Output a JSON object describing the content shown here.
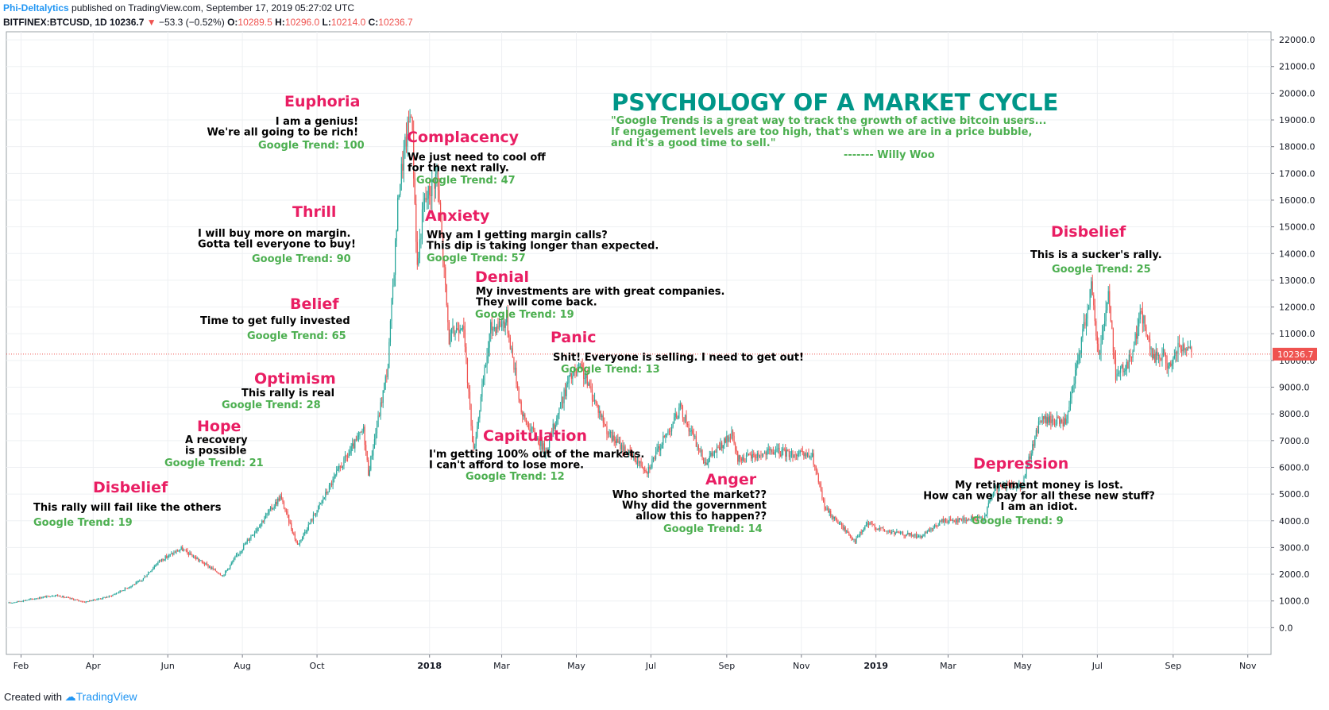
{
  "header": {
    "author": "Phi-Deltalytics",
    "published": "published on TradingView.com, September 17, 2019 05:27:02 UTC",
    "symbol": "BITFINEX:BTCUSD, 1D",
    "last": "10236.7",
    "change": "−53.3 (−0.52%)",
    "o_label": "O:",
    "o_val": "10289.5",
    "h_label": "H:",
    "h_val": "10296.0",
    "l_label": "L:",
    "l_val": "10214.0",
    "c_label": "C:",
    "c_val": "10236.7"
  },
  "footer": {
    "created_with": "Created with",
    "brand": "TradingView"
  },
  "colors": {
    "up": "#26a69a",
    "down": "#ef5350",
    "stage": "#e91e63",
    "trend": "#4caf50",
    "title": "#009688",
    "quote": "#4caf50",
    "last_price_line": "#ef5350"
  },
  "chart_data": {
    "type": "candlestick",
    "title": "PSYCHOLOGY OF A MARKET CYCLE",
    "quote": [
      "\"Google Trends is a great way to track the growth of active bitcoin users...",
      "If engagement levels are too high, that's when we are in a price bubble,",
      "and it's a good time to sell.\""
    ],
    "quote_author": "------- Willy Woo",
    "ylim": [
      -1000,
      22300
    ],
    "y_ticks": [
      "0.0",
      "1000.0",
      "2000.0",
      "3000.0",
      "4000.0",
      "5000.0",
      "6000.0",
      "7000.0",
      "8000.0",
      "9000.0",
      "10000.0",
      "11000.0",
      "12000.0",
      "13000.0",
      "14000.0",
      "15000.0",
      "16000.0",
      "17000.0",
      "18000.0",
      "19000.0",
      "20000.0",
      "21000.0",
      "22000.0"
    ],
    "x_ticks": [
      {
        "label": "Feb",
        "date": "2017-02-01",
        "bold": false
      },
      {
        "label": "Apr",
        "date": "2017-04-01",
        "bold": false
      },
      {
        "label": "Jun",
        "date": "2017-06-01",
        "bold": false
      },
      {
        "label": "Aug",
        "date": "2017-08-01",
        "bold": false
      },
      {
        "label": "Oct",
        "date": "2017-10-01",
        "bold": false
      },
      {
        "label": "2018",
        "date": "2018-01-01",
        "bold": true
      },
      {
        "label": "Mar",
        "date": "2018-03-01",
        "bold": false
      },
      {
        "label": "May",
        "date": "2018-05-01",
        "bold": false
      },
      {
        "label": "Jul",
        "date": "2018-07-01",
        "bold": false
      },
      {
        "label": "Sep",
        "date": "2018-09-01",
        "bold": false
      },
      {
        "label": "Nov",
        "date": "2018-11-01",
        "bold": false
      },
      {
        "label": "2019",
        "date": "2019-01-01",
        "bold": true
      },
      {
        "label": "Mar",
        "date": "2019-03-01",
        "bold": false
      },
      {
        "label": "May",
        "date": "2019-05-01",
        "bold": false
      },
      {
        "label": "Jul",
        "date": "2019-07-01",
        "bold": false
      },
      {
        "label": "Sep",
        "date": "2019-09-01",
        "bold": false
      },
      {
        "label": "Nov",
        "date": "2019-11-01",
        "bold": false
      }
    ],
    "last_price": 10236.7,
    "last_price_label": "10236.7",
    "price_path": [
      [
        "2017-01-22",
        920
      ],
      [
        "2017-03-01",
        1220
      ],
      [
        "2017-03-25",
        960
      ],
      [
        "2017-04-15",
        1180
      ],
      [
        "2017-05-10",
        1750
      ],
      [
        "2017-05-25",
        2500
      ],
      [
        "2017-06-12",
        2950
      ],
      [
        "2017-07-16",
        1950
      ],
      [
        "2017-08-05",
        3250
      ],
      [
        "2017-09-01",
        4900
      ],
      [
        "2017-09-15",
        3100
      ],
      [
        "2017-10-01",
        4400
      ],
      [
        "2017-10-20",
        6000
      ],
      [
        "2017-11-08",
        7400
      ],
      [
        "2017-11-12",
        5800
      ],
      [
        "2017-11-28",
        9800
      ],
      [
        "2017-12-07",
        16500
      ],
      [
        "2017-12-17",
        19500
      ],
      [
        "2017-12-22",
        13500
      ],
      [
        "2017-12-27",
        15800
      ],
      [
        "2018-01-07",
        17000
      ],
      [
        "2018-01-17",
        10800
      ],
      [
        "2018-01-28",
        11500
      ],
      [
        "2018-02-06",
        6600
      ],
      [
        "2018-02-20",
        11200
      ],
      [
        "2018-03-05",
        11500
      ],
      [
        "2018-03-18",
        7900
      ],
      [
        "2018-04-06",
        6600
      ],
      [
        "2018-04-25",
        9300
      ],
      [
        "2018-05-05",
        9700
      ],
      [
        "2018-05-28",
        7200
      ],
      [
        "2018-06-28",
        5900
      ],
      [
        "2018-07-25",
        8200
      ],
      [
        "2018-08-14",
        6200
      ],
      [
        "2018-09-05",
        7200
      ],
      [
        "2018-09-10",
        6300
      ],
      [
        "2018-10-10",
        6600
      ],
      [
        "2018-11-10",
        6400
      ],
      [
        "2018-11-20",
        4500
      ],
      [
        "2018-12-15",
        3250
      ],
      [
        "2018-12-25",
        3900
      ],
      [
        "2019-01-10",
        3600
      ],
      [
        "2019-02-08",
        3400
      ],
      [
        "2019-02-24",
        4000
      ],
      [
        "2019-03-30",
        4100
      ],
      [
        "2019-04-08",
        5200
      ],
      [
        "2019-05-01",
        5400
      ],
      [
        "2019-05-15",
        7800
      ],
      [
        "2019-06-06",
        7700
      ],
      [
        "2019-06-26",
        12800
      ],
      [
        "2019-07-02",
        10200
      ],
      [
        "2019-07-10",
        12500
      ],
      [
        "2019-07-16",
        9500
      ],
      [
        "2019-07-26",
        9800
      ],
      [
        "2019-08-06",
        11800
      ],
      [
        "2019-08-15",
        10100
      ],
      [
        "2019-08-24",
        10200
      ],
      [
        "2019-08-30",
        9600
      ],
      [
        "2019-09-05",
        10500
      ],
      [
        "2019-09-16",
        10236.7
      ]
    ],
    "annotations": [
      {
        "stage": "Disbelief",
        "lines": [
          "This rally will fail like the others"
        ],
        "trend": "Google Trend: 19"
      },
      {
        "stage": "Hope",
        "lines": [
          "A recovery",
          "is possible"
        ],
        "trend": "Google Trend: 21"
      },
      {
        "stage": "Optimism",
        "lines": [
          "This rally is real"
        ],
        "trend": "Google Trend: 28"
      },
      {
        "stage": "Belief",
        "lines": [
          "Time to get fully invested"
        ],
        "trend": "Google Trend: 65"
      },
      {
        "stage": "Thrill",
        "lines": [
          "I will buy more on margin.",
          "Gotta tell everyone to buy!"
        ],
        "trend": "Google Trend: 90"
      },
      {
        "stage": "Euphoria",
        "lines": [
          "I am a genius!",
          "We're all going to be rich!"
        ],
        "trend": "Google Trend: 100"
      },
      {
        "stage": "Complacency",
        "lines": [
          "We just need to cool off",
          "for the next rally."
        ],
        "trend": "Google Trend: 47"
      },
      {
        "stage": "Anxiety",
        "lines": [
          "Why am I getting margin calls?",
          "This dip is taking longer than expected."
        ],
        "trend": "Google Trend: 57"
      },
      {
        "stage": "Denial",
        "lines": [
          "My investments are with great companies.",
          "They will come back."
        ],
        "trend": "Google Trend: 19"
      },
      {
        "stage": "Panic",
        "lines": [
          "Shit! Everyone is selling. I need to get out!"
        ],
        "trend": "Google Trend: 13"
      },
      {
        "stage": "Capitulation",
        "lines": [
          "I'm getting 100% out of the markets.",
          "I can't afford to lose more."
        ],
        "trend": "Google Trend: 12"
      },
      {
        "stage": "Anger",
        "lines": [
          "Who shorted the market??",
          "Why did the government",
          "allow this to happen??"
        ],
        "trend": "Google Trend: 14"
      },
      {
        "stage": "Depression",
        "lines": [
          "My retirement money is lost.",
          "How can we pay for all these new stuff?",
          "I am an idiot."
        ],
        "trend": "Google Trend: 9"
      },
      {
        "stage": "Disbelief",
        "lines": [
          "This is a sucker's rally."
        ],
        "trend": "Google Trend: 25"
      }
    ]
  }
}
